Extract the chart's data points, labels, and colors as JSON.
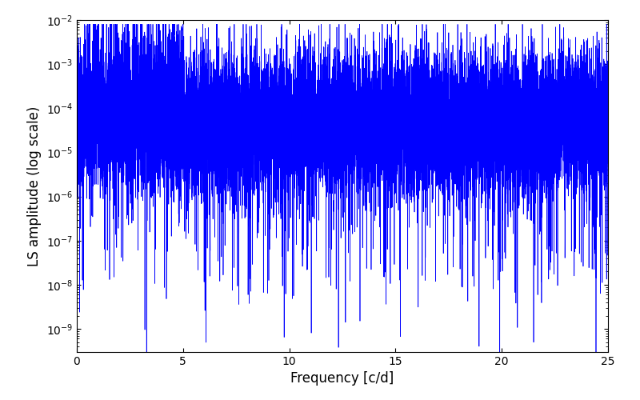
{
  "title": "",
  "xlabel": "Frequency [c/d]",
  "ylabel": "LS amplitude (log scale)",
  "xlim": [
    0,
    25
  ],
  "ylim": [
    3e-10,
    0.01
  ],
  "line_color": "blue",
  "line_width": 0.5,
  "freq_min": 0.0,
  "freq_max": 25.0,
  "n_points": 15000,
  "seed": 7,
  "background_color": "white",
  "figsize": [
    8.0,
    5.0
  ],
  "dpi": 100,
  "xticks": [
    0,
    5,
    10,
    15,
    20,
    25
  ],
  "yticks": [
    1e-09,
    1e-08,
    1e-07,
    1e-06,
    1e-05,
    0.0001,
    0.001,
    0.01
  ],
  "deep_null_freq": 21.5,
  "deep_null_value": 5e-10
}
